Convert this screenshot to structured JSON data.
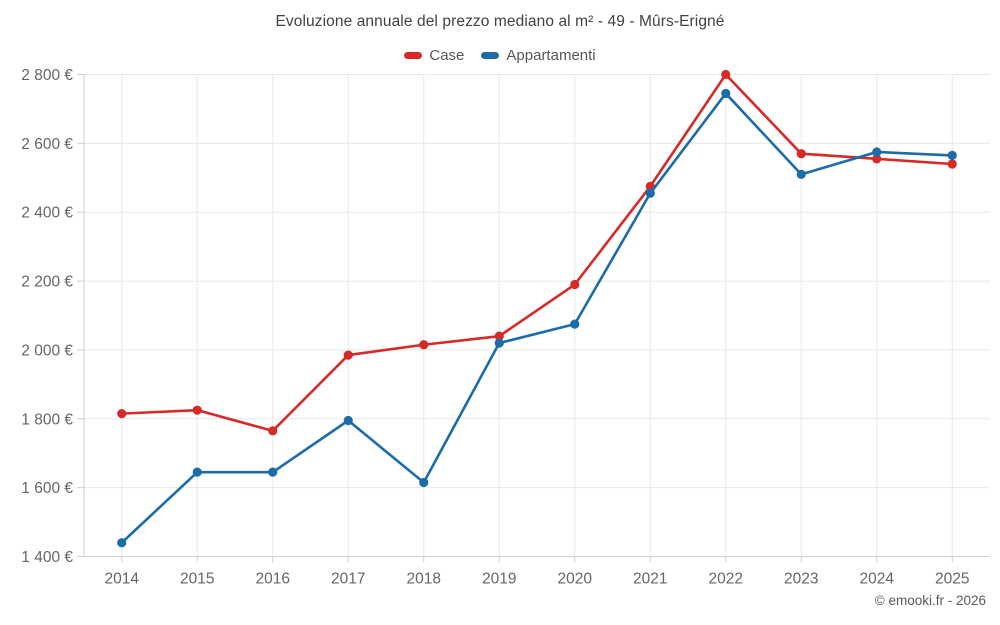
{
  "chart_data": {
    "type": "line",
    "title": "Evoluzione annuale del prezzo mediano al m² - 49 - Mûrs-Erigné",
    "categories": [
      "2014",
      "2015",
      "2016",
      "2017",
      "2018",
      "2019",
      "2020",
      "2021",
      "2022",
      "2023",
      "2024",
      "2025"
    ],
    "series": [
      {
        "name": "Case",
        "color": "#d62a28",
        "values": [
          1815,
          1825,
          1765,
          1985,
          2015,
          2040,
          2190,
          2475,
          2800,
          2570,
          2555,
          2540
        ]
      },
      {
        "name": "Appartamenti",
        "color": "#1b6ca8",
        "values": [
          1440,
          1645,
          1645,
          1795,
          1615,
          2020,
          2075,
          2455,
          2745,
          2510,
          2575,
          2565
        ]
      }
    ],
    "ylim": [
      1400,
      2800
    ],
    "ytick_step": 200,
    "ytick_suffix": " €",
    "grid": true,
    "legend_position": "top",
    "xlabel": "",
    "ylabel": ""
  },
  "footer": {
    "credit": "© emooki.fr - 2026"
  },
  "colors": {
    "background": "#ffffff",
    "grid": "#e8e8e8",
    "spine": "#cfcfcf",
    "axis_label": "#666666",
    "title": "#424242",
    "case": "#d62a28",
    "appartamenti": "#1b6ca8"
  }
}
